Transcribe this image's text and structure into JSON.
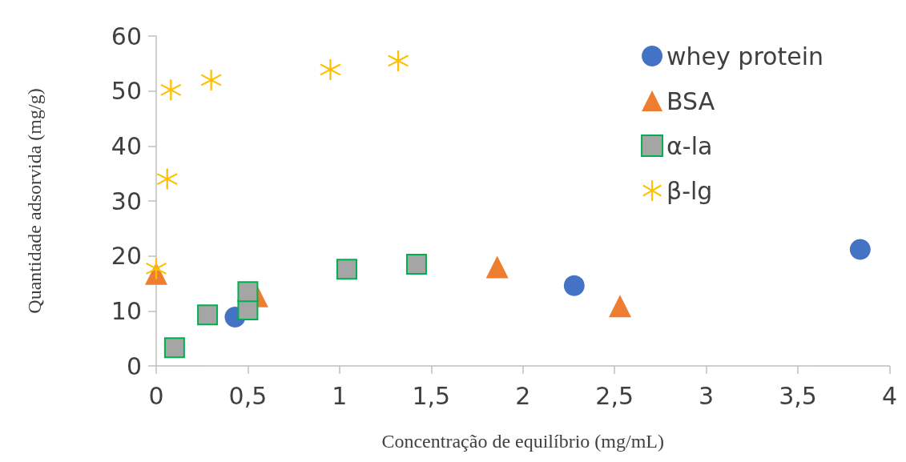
{
  "chart_data": {
    "type": "scatter",
    "xlabel": "Concentração de equilíbrio (mg/mL)",
    "ylabel": "Quantidade adsorvida (mg/g)",
    "xlim": [
      0,
      4
    ],
    "xticks": [
      {
        "value": 0,
        "label": "0"
      },
      {
        "value": 0.5,
        "label": "0,5"
      },
      {
        "value": 1,
        "label": "1"
      },
      {
        "value": 1.5,
        "label": "1,5"
      },
      {
        "value": 2,
        "label": "2"
      },
      {
        "value": 2.5,
        "label": "2,5"
      },
      {
        "value": 3,
        "label": "3"
      },
      {
        "value": 3.5,
        "label": "3,5"
      },
      {
        "value": 4,
        "label": "4"
      }
    ],
    "ylim": [
      0,
      60
    ],
    "yticks": [
      0,
      10,
      20,
      30,
      40,
      50,
      60
    ],
    "grid": false,
    "legend": "top right",
    "series": [
      {
        "name": "whey protein",
        "color": "#4472c4",
        "marker": "circle",
        "x": [
          0.43,
          2.28,
          3.84
        ],
        "values": [
          8.9,
          14.6,
          21.2
        ]
      },
      {
        "name": "BSA",
        "color": "#ed7d31",
        "marker": "triangle",
        "x": [
          0,
          0.55,
          1.86,
          2.53
        ],
        "values": [
          16.8,
          12.7,
          18.0,
          10.9
        ]
      },
      {
        "name": "α-la",
        "color": "#a5a5a5",
        "marker": "square",
        "x": [
          0.1,
          0.28,
          0.5,
          0.5,
          1.04,
          1.42
        ],
        "values": [
          3.3,
          9.3,
          10.2,
          13.5,
          17.6,
          18.5
        ]
      },
      {
        "name": "β-lg",
        "color": "#ffc000",
        "marker": "cross",
        "x": [
          0,
          0.06,
          0.08,
          0.3,
          0.95,
          1.32
        ],
        "values": [
          17.7,
          34.0,
          50.2,
          52.0,
          53.9,
          55.5
        ]
      }
    ]
  }
}
